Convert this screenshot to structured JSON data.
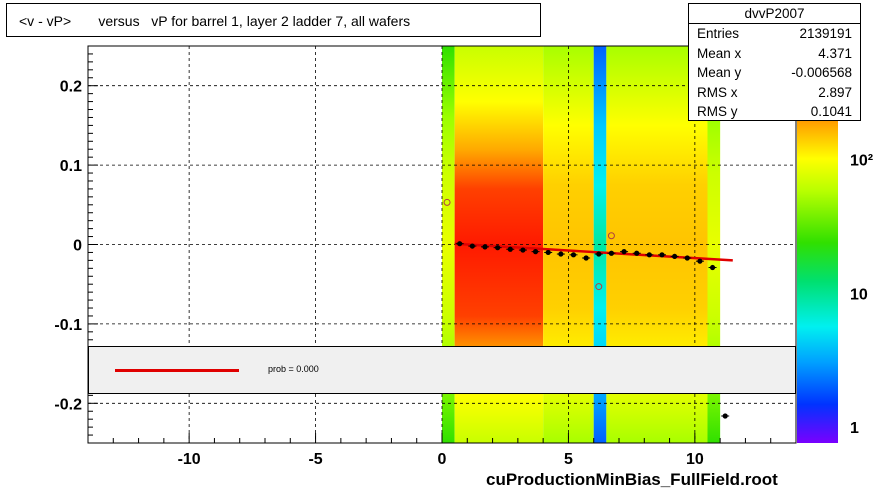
{
  "title": "<v - vP>       versus   vP for barrel 1, layer 2 ladder 7, all wafers",
  "stats": {
    "name": "dvvP2007",
    "rows": [
      {
        "key": "Entries",
        "value": "2139191"
      },
      {
        "key": "Mean x",
        "value": "4.371"
      },
      {
        "key": "Mean y",
        "value": "-0.006568"
      },
      {
        "key": "RMS x",
        "value": "2.897"
      },
      {
        "key": "RMS y",
        "value": "0.1041"
      }
    ]
  },
  "legend": {
    "fit_label": "prob = 0.000",
    "fit_color": "#e00000"
  },
  "footer": "cuProductionMinBias_FullField.root",
  "colorbar": {
    "tick_labels": [
      "10²",
      "10",
      "1"
    ],
    "tick_values": [
      100,
      10,
      1
    ]
  },
  "chart_data": {
    "type": "heatmap",
    "xlim": [
      -14,
      14
    ],
    "ylim": [
      -0.25,
      0.25
    ],
    "grid": true,
    "x_ticks": [
      -10,
      -5,
      0,
      5,
      10
    ],
    "x_tick_labels": [
      "-10",
      "-5",
      "0",
      "5",
      "10"
    ],
    "y_ticks": [
      -0.2,
      -0.1,
      0,
      0.1,
      0.2
    ],
    "y_tick_labels": [
      "-0.2",
      "-0.1",
      "0",
      "0.1",
      "0.2"
    ],
    "heat_columns": [
      {
        "x0": 0,
        "x1": 0.5,
        "level": "green"
      },
      {
        "x0": 0.5,
        "x1": 4.0,
        "level": "red"
      },
      {
        "x0": 4.0,
        "x1": 6.0,
        "level": "yellow"
      },
      {
        "x0": 6.0,
        "x1": 6.5,
        "level": "cyan"
      },
      {
        "x0": 6.5,
        "x1": 10.5,
        "level": "yellow"
      },
      {
        "x0": 10.5,
        "x1": 11.0,
        "level": "green"
      }
    ],
    "profile_points": [
      {
        "x": 0.7,
        "y": 0.001
      },
      {
        "x": 1.2,
        "y": -0.002
      },
      {
        "x": 1.7,
        "y": -0.003
      },
      {
        "x": 2.2,
        "y": -0.004
      },
      {
        "x": 2.7,
        "y": -0.006
      },
      {
        "x": 3.2,
        "y": -0.007
      },
      {
        "x": 3.7,
        "y": -0.009
      },
      {
        "x": 4.2,
        "y": -0.01
      },
      {
        "x": 4.7,
        "y": -0.012
      },
      {
        "x": 5.2,
        "y": -0.013
      },
      {
        "x": 5.7,
        "y": -0.017
      },
      {
        "x": 6.2,
        "y": -0.012
      },
      {
        "x": 6.7,
        "y": -0.011
      },
      {
        "x": 7.2,
        "y": -0.009
      },
      {
        "x": 7.7,
        "y": -0.011
      },
      {
        "x": 8.2,
        "y": -0.013
      },
      {
        "x": 8.7,
        "y": -0.013
      },
      {
        "x": 9.2,
        "y": -0.015
      },
      {
        "x": 9.7,
        "y": -0.017
      },
      {
        "x": 10.2,
        "y": -0.021
      },
      {
        "x": 10.7,
        "y": -0.029
      },
      {
        "x": 11.2,
        "y": -0.216
      }
    ],
    "open_points": [
      {
        "x": 0.2,
        "y": 0.053
      },
      {
        "x": 6.2,
        "y": -0.053
      },
      {
        "x": 6.7,
        "y": 0.011
      }
    ],
    "fit_line": {
      "x0": 0.5,
      "y0": 0.001,
      "x1": 11.5,
      "y1": -0.02
    }
  }
}
